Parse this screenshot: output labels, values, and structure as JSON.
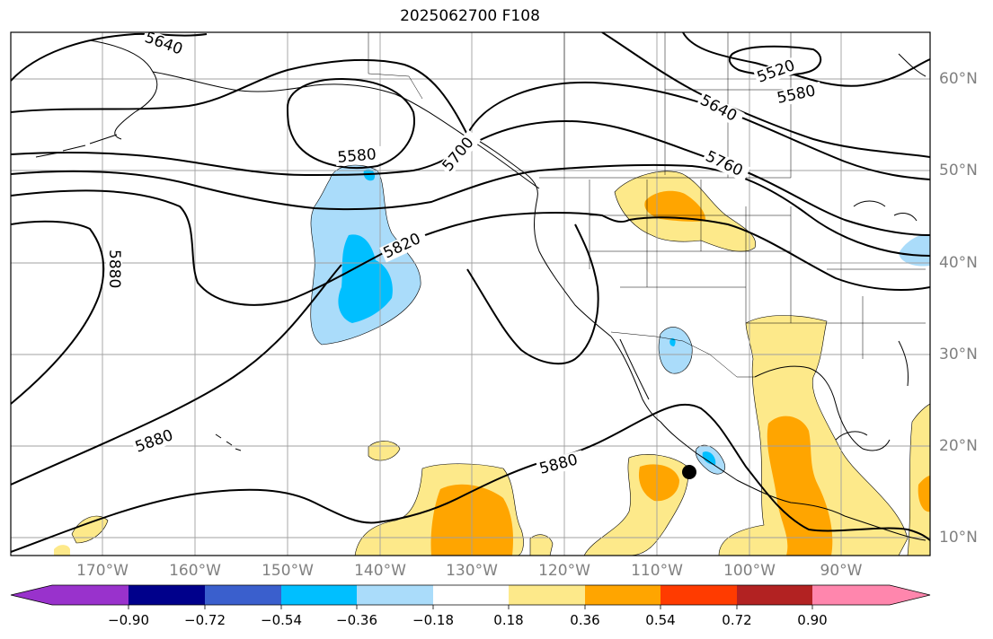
{
  "title": "2025062700 F108",
  "map": {
    "lon_labels": [
      "170°W",
      "160°W",
      "150°W",
      "140°W",
      "130°W",
      "120°W",
      "110°W",
      "100°W",
      "90°W"
    ],
    "lat_labels": [
      "60°N",
      "50°N",
      "40°N",
      "30°N",
      "20°N",
      "10°N"
    ],
    "contour_labels": [
      "5640",
      "5520",
      "5580",
      "5640",
      "5580",
      "5700",
      "5760",
      "5820",
      "5880",
      "5880",
      "5880"
    ],
    "colors": {
      "contour": "#000000",
      "grid": "#a0a0a0",
      "coast": "#000000",
      "light_blue": "#aadcfa",
      "blue": "#00bfff",
      "light_yellow": "#fde98a",
      "orange": "#ffa500",
      "marker": "#000000"
    }
  },
  "colorbar": {
    "tick_labels": [
      "−0.90",
      "−0.72",
      "−0.54",
      "−0.36",
      "−0.18",
      "0.18",
      "0.36",
      "0.54",
      "0.72",
      "0.90"
    ],
    "colors": [
      "#9932cc",
      "#00008b",
      "#3a5fcd",
      "#00bfff",
      "#aadcfa",
      "#ffffff",
      "#fde98a",
      "#ffa500",
      "#ff3b00",
      "#b22222",
      "#ff86ad"
    ]
  }
}
